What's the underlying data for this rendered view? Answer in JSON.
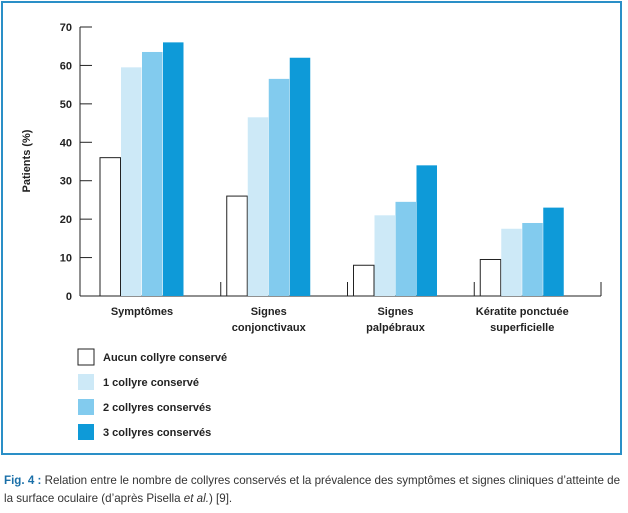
{
  "chart_data": {
    "type": "bar",
    "ylabel": "Patients (%)",
    "ylim": [
      0,
      70
    ],
    "yticks": [
      0,
      10,
      20,
      30,
      40,
      50,
      60,
      70
    ],
    "categories": [
      [
        "Symptômes"
      ],
      [
        "Signes",
        "conjonctivaux"
      ],
      [
        "Signes",
        "palpébraux"
      ],
      [
        "Kératite ponctuée",
        "superficielle"
      ]
    ],
    "series": [
      {
        "name": "Aucun collyre conservé",
        "color": "#ffffff",
        "values": [
          36,
          26,
          8,
          9.5
        ]
      },
      {
        "name": "1 collyre conservé",
        "color": "#cde9f7",
        "values": [
          59.5,
          46.5,
          21,
          17.5
        ]
      },
      {
        "name": "2 collyres conservés",
        "color": "#82cbee",
        "values": [
          63.5,
          56.5,
          24.5,
          19
        ]
      },
      {
        "name": "3 collyres conservés",
        "color": "#0e9ad8",
        "values": [
          66,
          62,
          34,
          23
        ]
      }
    ],
    "legend_position": "bottom-left",
    "grid": false
  },
  "caption": {
    "label": "Fig. 4 :",
    "text_before": " Relation entre le nombre de collyres conservés et la prévalence des symptômes et signes cliniques d’atteinte de la surface oculaire (d’après Pisella ",
    "et_al": "et al.",
    "text_after": ") [9]."
  }
}
